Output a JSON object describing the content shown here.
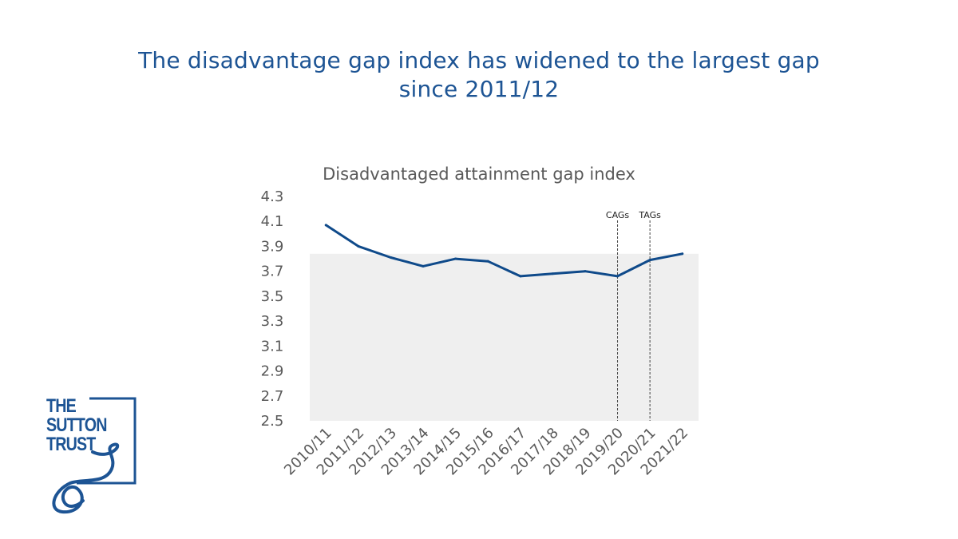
{
  "headline": {
    "line1": "The disadvantage gap index has widened to the largest gap",
    "line2": "since 2011/12"
  },
  "colors": {
    "brand": "#1d5494",
    "line": "#0f4a8a",
    "band": "#efefef",
    "text": "#595959"
  },
  "logo": {
    "line1": "THE",
    "line2": "SUTTON",
    "line3": "TRUST"
  },
  "chart_data": {
    "type": "line",
    "title": "Disadvantaged attainment gap index",
    "xlabel": "",
    "ylabel": "",
    "categories": [
      "2010/11",
      "2011/12",
      "2012/13",
      "2013/14",
      "2014/15",
      "2015/16",
      "2016/17",
      "2017/18",
      "2018/19",
      "2019/20",
      "2020/21",
      "2021/22"
    ],
    "series": [
      {
        "values": [
          4.07,
          3.9,
          3.81,
          3.74,
          3.8,
          3.78,
          3.66,
          3.68,
          3.7,
          3.66,
          3.79,
          3.84
        ]
      }
    ],
    "yticks": [
      "4.3",
      "4.1",
      "3.9",
      "3.7",
      "3.5",
      "3.3",
      "3.1",
      "2.9",
      "2.7",
      "2.5"
    ],
    "ylim": [
      2.5,
      4.3
    ],
    "band_top": 3.84,
    "annotations": [
      {
        "label": "CAGs",
        "category": "2019/20"
      },
      {
        "label": "TAGs",
        "category": "2020/21"
      }
    ],
    "grid": false,
    "legend": "none"
  }
}
